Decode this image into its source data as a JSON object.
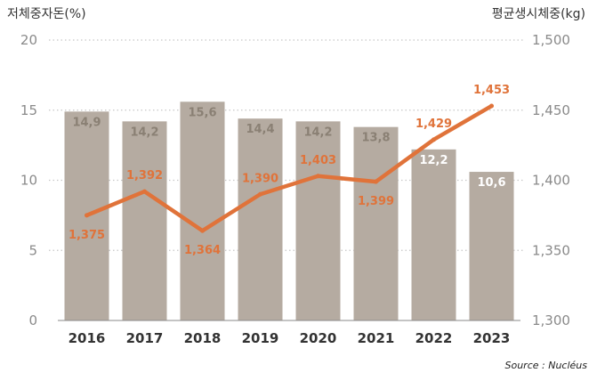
{
  "chart_data": {
    "type": "bar",
    "categories": [
      "2016",
      "2017",
      "2018",
      "2019",
      "2020",
      "2021",
      "2022",
      "2023"
    ],
    "series": [
      {
        "name": "저체중자돈(%)",
        "type": "bar",
        "axis": "left",
        "values": [
          14.9,
          14.2,
          15.6,
          14.4,
          14.2,
          13.8,
          12.2,
          10.6
        ],
        "labels": [
          "14,9",
          "14,2",
          "15,6",
          "14,4",
          "14,2",
          "13,8",
          "12,2",
          "10,6"
        ]
      },
      {
        "name": "평균생시체중(kg)",
        "type": "line",
        "axis": "right",
        "values": [
          1.375,
          1.392,
          1.364,
          1.39,
          1.403,
          1.399,
          1.429,
          1.453
        ],
        "labels": [
          "1,375",
          "1,392",
          "1,364",
          "1,390",
          "1,403",
          "1,399",
          "1,429",
          "1,453"
        ]
      }
    ],
    "left_axis": {
      "title": "저체중자돈(%)",
      "ylim": [
        0,
        20
      ],
      "ticks": [
        0,
        5,
        10,
        15,
        20
      ],
      "tick_labels": [
        "0",
        "5",
        "10",
        "15",
        "20"
      ]
    },
    "right_axis": {
      "title": "평균생시체중(kg)",
      "ylim": [
        1.3,
        1.5
      ],
      "ticks": [
        1.3,
        1.35,
        1.4,
        1.45,
        1.5
      ],
      "tick_labels": [
        "1,300",
        "1,350",
        "1,400",
        "1,450",
        "1,500"
      ]
    },
    "grid": true,
    "source": "Source : Nucléus"
  },
  "colors": {
    "bar": "#b5aba1",
    "line": "#e0733a",
    "grid": "#c8c8c8",
    "bar_label_dark": "#8a8074",
    "bar_label_light": "#ffffff"
  }
}
